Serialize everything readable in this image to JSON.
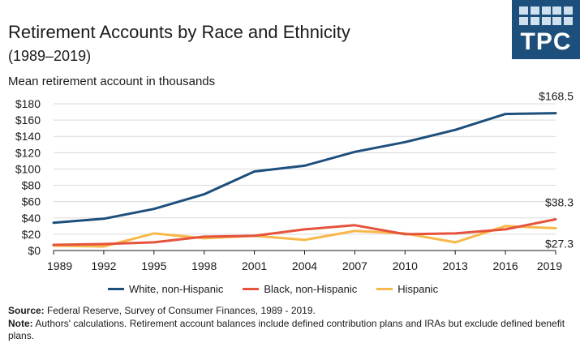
{
  "header": {
    "title": "Retirement Accounts by Race and Ethnicity",
    "subtitle": "(1989–2019)",
    "unit_label": "Mean retirement account in thousands"
  },
  "logo": {
    "text": "TPC",
    "color": "#1d4f7c"
  },
  "chart_data": {
    "type": "line",
    "x": [
      1989,
      1992,
      1995,
      1998,
      2001,
      2004,
      2007,
      2010,
      2013,
      2016,
      2019
    ],
    "x_tick_labels": [
      "1989",
      "1992",
      "1995",
      "1998",
      "2001",
      "2004",
      "2007",
      "2010",
      "2013",
      "2016",
      "2019"
    ],
    "ylim": [
      0,
      180
    ],
    "y_ticks": [
      0,
      20,
      40,
      60,
      80,
      100,
      120,
      140,
      160,
      180
    ],
    "y_tick_labels": [
      "$0",
      "$20",
      "$40",
      "$60",
      "$80",
      "$100",
      "$120",
      "$140",
      "$160",
      "$180"
    ],
    "grid": "horizontal",
    "legend_position": "bottom",
    "series": [
      {
        "name": "White, non-Hispanic",
        "color": "#1d4f7c",
        "values": [
          34,
          39,
          51,
          69,
          97,
          104,
          121,
          133,
          148,
          167.5,
          168.5
        ],
        "end_label": "$168.5"
      },
      {
        "name": "Black, non-Hispanic",
        "color": "#e5533c",
        "values": [
          7,
          8,
          10,
          17,
          18,
          26,
          31,
          20,
          21,
          26,
          38.3
        ],
        "end_label": "$38.3"
      },
      {
        "name": "Hispanic",
        "color": "#f8b84a",
        "values": [
          6,
          5,
          21,
          15,
          18,
          13,
          24,
          21,
          10,
          30,
          27.3
        ],
        "end_label": "$27.3"
      }
    ]
  },
  "footnote": {
    "source_label": "Source:",
    "source_text": " Federal Reserve, Survey of Consumer Finances, 1989 - 2019.",
    "note_label": "Note:",
    "note_text": " Authors' calculations. Retirement account balances include defined contribution plans and IRAs but exclude defined benefit plans."
  }
}
